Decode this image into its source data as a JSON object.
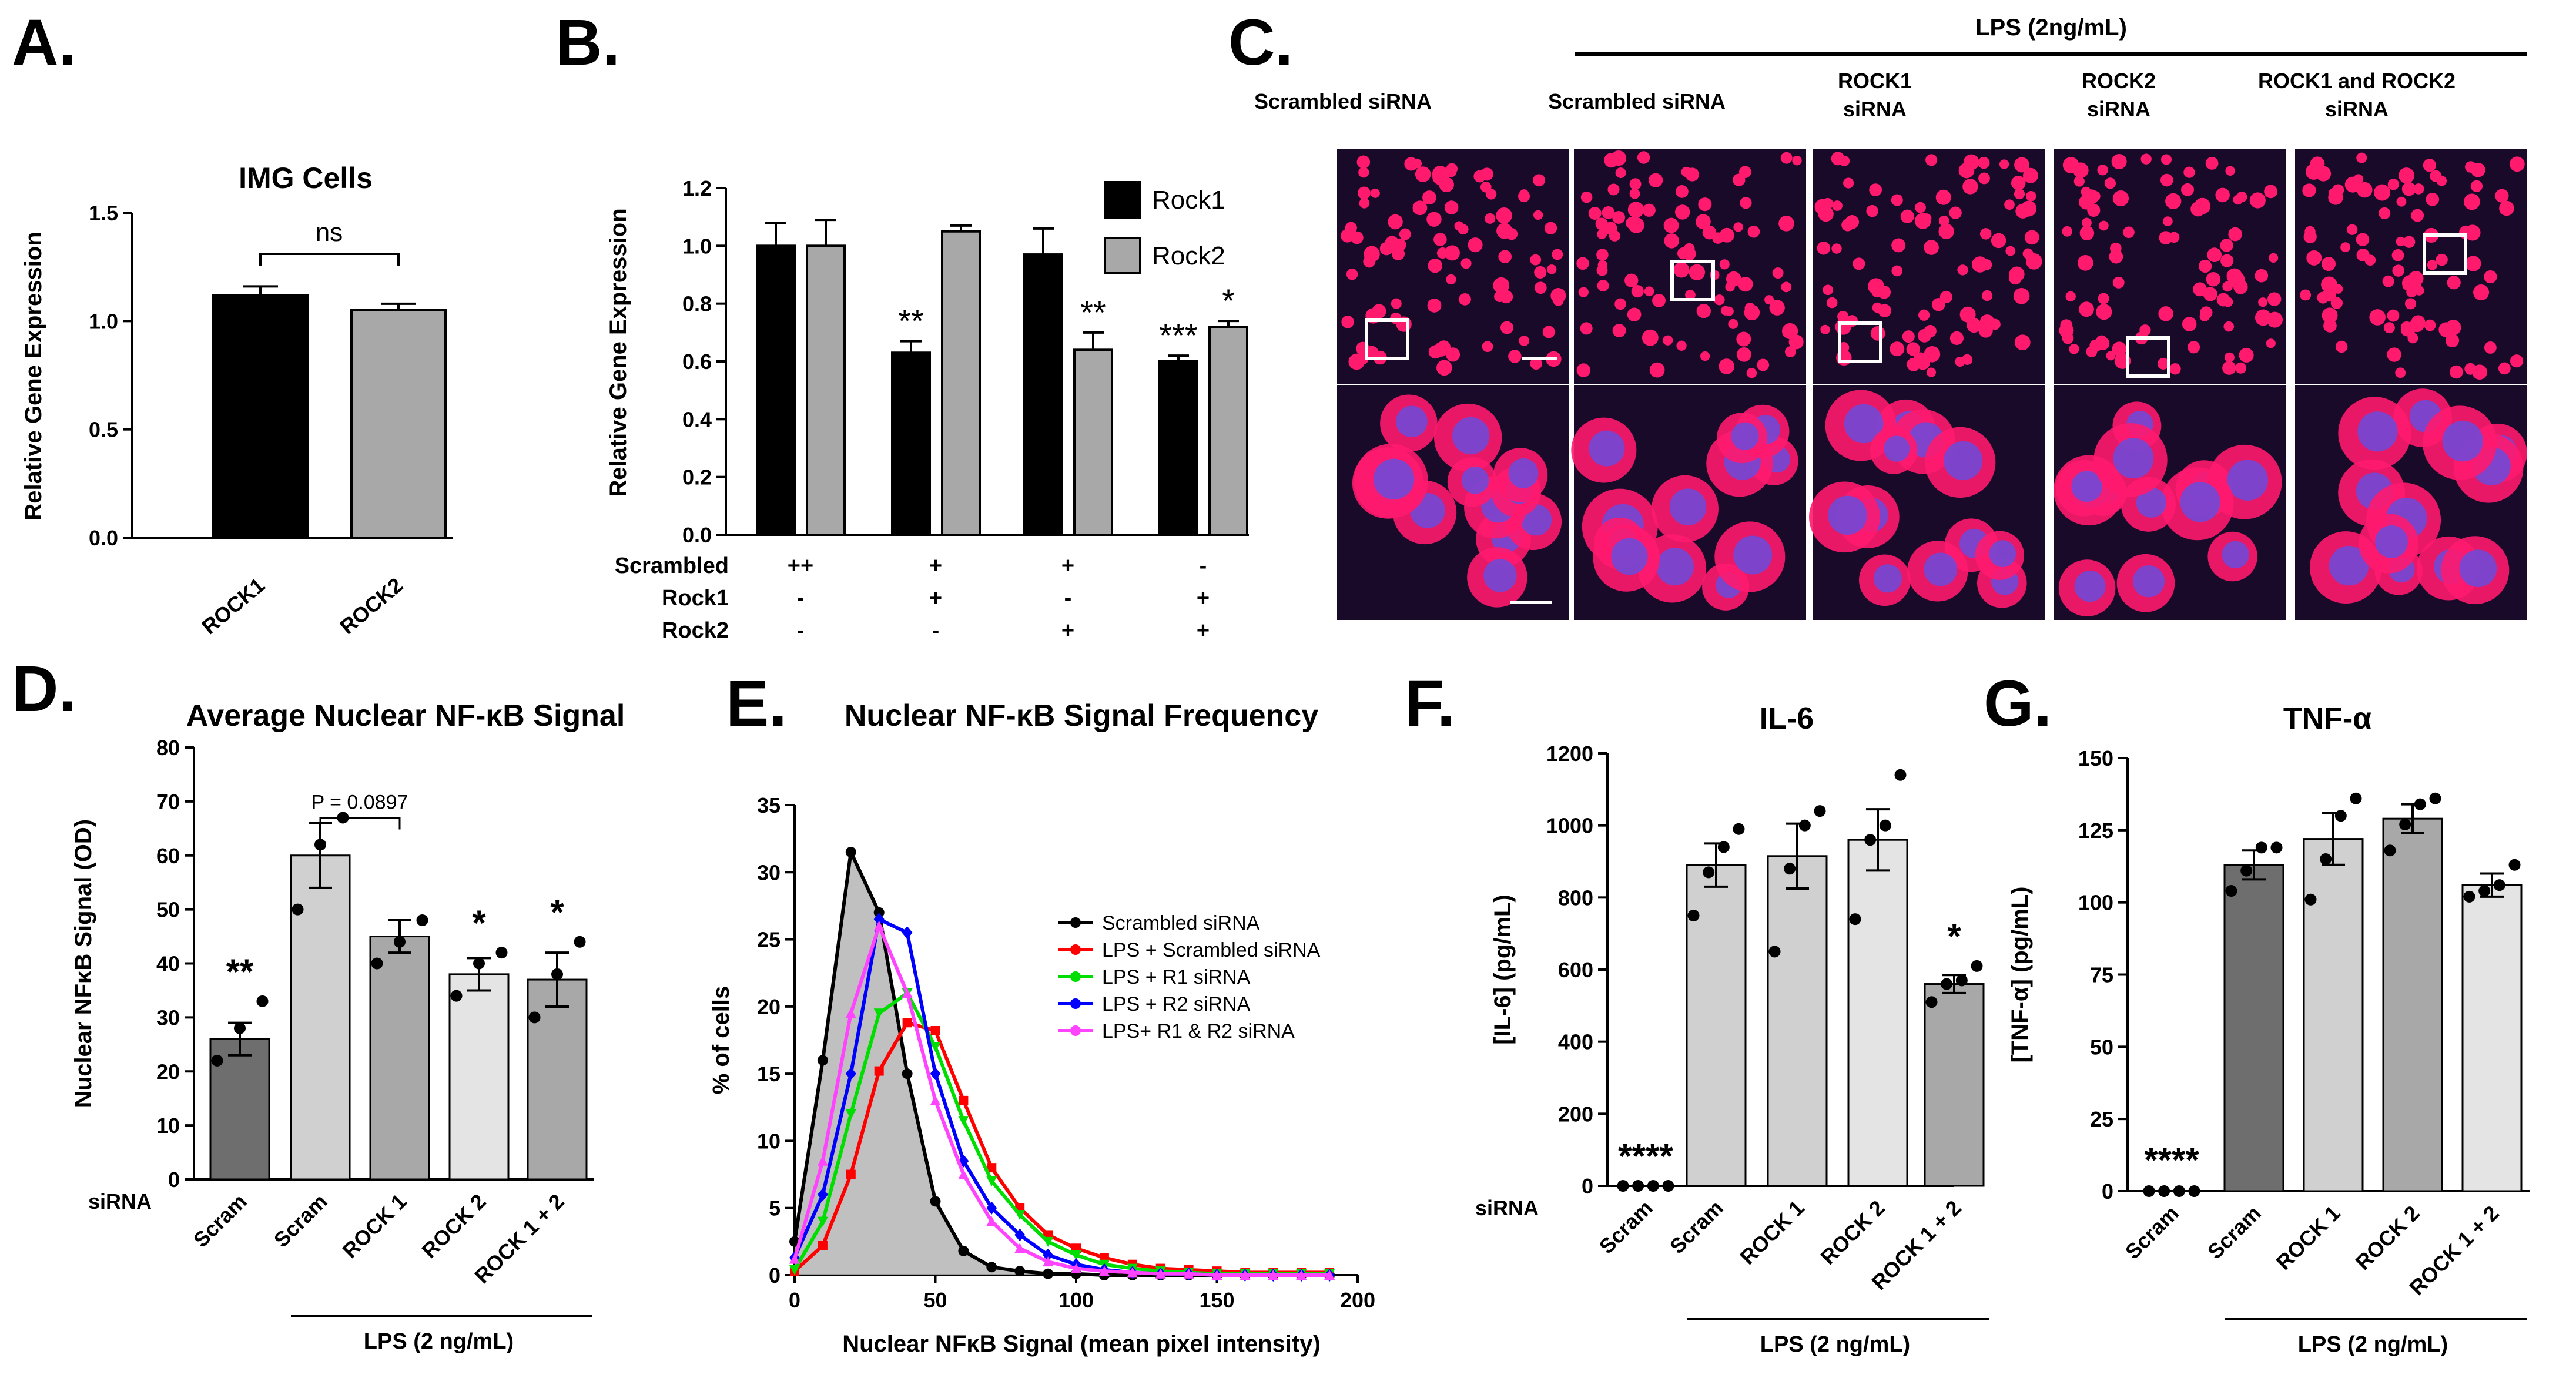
{
  "figure": {
    "panel_letters": [
      "A.",
      "B.",
      "C.",
      "D.",
      "E.",
      "F.",
      "G."
    ],
    "colors": {
      "black": "#000000",
      "dark_gray": "#6e6e6e",
      "mid_gray": "#a8a8a8",
      "light_gray": "#d0d0d0",
      "lighter_gray": "#e4e4e4",
      "red": "#ff0000",
      "green": "#00dd00",
      "blue": "#0000ff",
      "magenta": "#ff44ff",
      "micro_bg": "#1a0a2a",
      "micro_cell": "#ff1a6e",
      "micro_nucleus": "#6a4bdc"
    }
  },
  "panelC": {
    "lps_label": "LPS (2ng/mL)",
    "col_labels": [
      [
        "Scrambled siRNA"
      ],
      [
        "Scrambled siRNA"
      ],
      [
        "ROCK1",
        "siRNA"
      ],
      [
        "ROCK2",
        "siRNA"
      ],
      [
        "ROCK1 and ROCK2",
        "siRNA"
      ]
    ]
  },
  "chart_data": [
    {
      "id": "A",
      "type": "bar",
      "title": "IMG Cells",
      "ylabel": "Relative Gene Expression",
      "xlabel": "",
      "categories": [
        "ROCK1",
        "ROCK2"
      ],
      "values": [
        1.12,
        1.05
      ],
      "errors": [
        0.04,
        0.03
      ],
      "ylim": [
        0,
        1.5
      ],
      "yticks": [
        "0.0",
        "0.5",
        "1.0",
        "1.5"
      ],
      "annotation": "ns"
    },
    {
      "id": "B",
      "type": "bar",
      "ylabel": "Relative Gene Expression",
      "ylim": [
        0,
        1.2
      ],
      "yticks": [
        "0.0",
        "0.2",
        "0.4",
        "0.6",
        "0.8",
        "1.0",
        "1.2"
      ],
      "legend": [
        "Rock1",
        "Rock2"
      ],
      "series": [
        {
          "name": "Rock1",
          "values": [
            1.0,
            0.63,
            0.97,
            0.6
          ],
          "errors": [
            0.08,
            0.04,
            0.09,
            0.02
          ]
        },
        {
          "name": "Rock2",
          "values": [
            1.0,
            1.05,
            0.64,
            0.72
          ],
          "errors": [
            0.09,
            0.02,
            0.06,
            0.02
          ]
        }
      ],
      "sig": [
        [
          "",
          ""
        ],
        [
          "**",
          ""
        ],
        [
          "",
          "**"
        ],
        [
          "***",
          "*"
        ]
      ],
      "condition_rows": [
        {
          "label": "Scrambled",
          "marks": [
            "++",
            "+",
            "+",
            "-"
          ]
        },
        {
          "label": "Rock1",
          "marks": [
            "-",
            "+",
            "-",
            "+"
          ]
        },
        {
          "label": "Rock2",
          "marks": [
            "-",
            "-",
            "+",
            "+"
          ]
        }
      ]
    },
    {
      "id": "D",
      "type": "bar",
      "title": "Average Nuclear NF-κB Signal",
      "ylabel": "Nuclear NFκB Signal (OD)",
      "ylim": [
        0,
        80
      ],
      "yticks": [
        "0",
        "10",
        "20",
        "30",
        "40",
        "50",
        "60",
        "70",
        "80"
      ],
      "categories": [
        "Scram",
        "Scram",
        "ROCK 1",
        "ROCK 2",
        "ROCK 1 + 2"
      ],
      "values": [
        26,
        60,
        45,
        38,
        37
      ],
      "errors": [
        3,
        6,
        3,
        3,
        5
      ],
      "points": [
        [
          22,
          28,
          33
        ],
        [
          50,
          62,
          67
        ],
        [
          40,
          44,
          48
        ],
        [
          34,
          40,
          42
        ],
        [
          30,
          38,
          44
        ]
      ],
      "sig": [
        "**",
        "",
        "",
        "*",
        "*"
      ],
      "bracket_label": "P = 0.0897",
      "row_label": "siRNA",
      "lps_label": "LPS (2 ng/mL)"
    },
    {
      "id": "E",
      "type": "line",
      "title": "Nuclear NF-κB Signal Frequency",
      "xlabel": "Nuclear NFκB Signal (mean pixel intensity)",
      "ylabel": "% of cells",
      "xlim": [
        0,
        200
      ],
      "ylim": [
        0,
        35
      ],
      "xticks": [
        "0",
        "50",
        "100",
        "150",
        "200"
      ],
      "yticks": [
        "0",
        "5",
        "10",
        "15",
        "20",
        "25",
        "30",
        "35"
      ],
      "x": [
        0,
        10,
        20,
        30,
        40,
        50,
        60,
        70,
        80,
        90,
        100,
        110,
        120,
        130,
        140,
        150,
        160,
        170,
        180,
        190
      ],
      "series": [
        {
          "name": "Scrambled siRNA",
          "values": [
            2.5,
            16,
            31.5,
            27,
            15,
            5.5,
            1.8,
            0.6,
            0.3,
            0.1,
            0.1,
            0,
            0,
            0,
            0,
            0,
            0,
            0,
            0,
            0
          ]
        },
        {
          "name": "LPS + Scrambled siRNA",
          "values": [
            0.3,
            2.2,
            7.5,
            15.2,
            18.8,
            18.2,
            13,
            8,
            5,
            3,
            2,
            1.3,
            0.8,
            0.5,
            0.4,
            0.3,
            0.2,
            0.2,
            0.2,
            0.2
          ]
        },
        {
          "name": "LPS + R1 siRNA",
          "values": [
            0.4,
            4,
            12,
            19.5,
            21,
            17,
            11.5,
            7,
            4.5,
            2.5,
            1.5,
            0.8,
            0.5,
            0.3,
            0.2,
            0.1,
            0.1,
            0.1,
            0.1,
            0.1
          ]
        },
        {
          "name": "LPS + R2 siRNA",
          "values": [
            1.3,
            6,
            15,
            26.5,
            25.5,
            15,
            8.5,
            5,
            3,
            1.5,
            0.8,
            0.4,
            0.2,
            0.1,
            0.1,
            0,
            0,
            0,
            0,
            0
          ]
        },
        {
          "name": "LPS+ R1 & R2 siRNA",
          "values": [
            1.2,
            8.5,
            19.5,
            26,
            21,
            13,
            7.5,
            4,
            2,
            1,
            0.5,
            0.3,
            0.2,
            0.1,
            0.1,
            0,
            0,
            0,
            0,
            0
          ]
        }
      ]
    },
    {
      "id": "F",
      "type": "bar",
      "title": "IL-6",
      "ylabel": "[IL-6] (pg/mL)",
      "ylim": [
        0,
        1200
      ],
      "yticks": [
        "0",
        "200",
        "400",
        "600",
        "800",
        "1000",
        "1200"
      ],
      "categories": [
        "Scram",
        "Scram",
        "ROCK 1",
        "ROCK 2",
        "ROCK 1 + 2"
      ],
      "values": [
        0,
        890,
        915,
        960,
        560
      ],
      "errors": [
        0,
        60,
        90,
        85,
        25
      ],
      "points": [
        [
          0,
          0,
          0,
          0
        ],
        [
          750,
          870,
          940,
          990
        ],
        [
          650,
          880,
          1000,
          1040
        ],
        [
          740,
          960,
          1000,
          1140
        ],
        [
          510,
          560,
          570,
          610
        ]
      ],
      "sig": [
        "****",
        "",
        "",
        "",
        "*"
      ],
      "row_label": "siRNA",
      "lps_label": "LPS (2 ng/mL)"
    },
    {
      "id": "G",
      "type": "bar",
      "title": "TNF-α",
      "ylabel": "[TNF-α] (pg/mL)",
      "ylim": [
        0,
        150
      ],
      "yticks": [
        "0",
        "25",
        "50",
        "75",
        "100",
        "125",
        "150"
      ],
      "categories": [
        "Scram",
        "Scram",
        "ROCK 1",
        "ROCK 2",
        "ROCK 1 + 2"
      ],
      "values": [
        0.5,
        113,
        122,
        129,
        106
      ],
      "errors": [
        0,
        5,
        9,
        5,
        4
      ],
      "points": [
        [
          0,
          0,
          0,
          0
        ],
        [
          104,
          111,
          119,
          119
        ],
        [
          101,
          115,
          130,
          136
        ],
        [
          118,
          127,
          134,
          136
        ],
        [
          102,
          104,
          106,
          113
        ]
      ],
      "sig": [
        "****",
        "",
        "",
        "",
        ""
      ],
      "lps_label": "LPS (2 ng/mL)"
    }
  ]
}
